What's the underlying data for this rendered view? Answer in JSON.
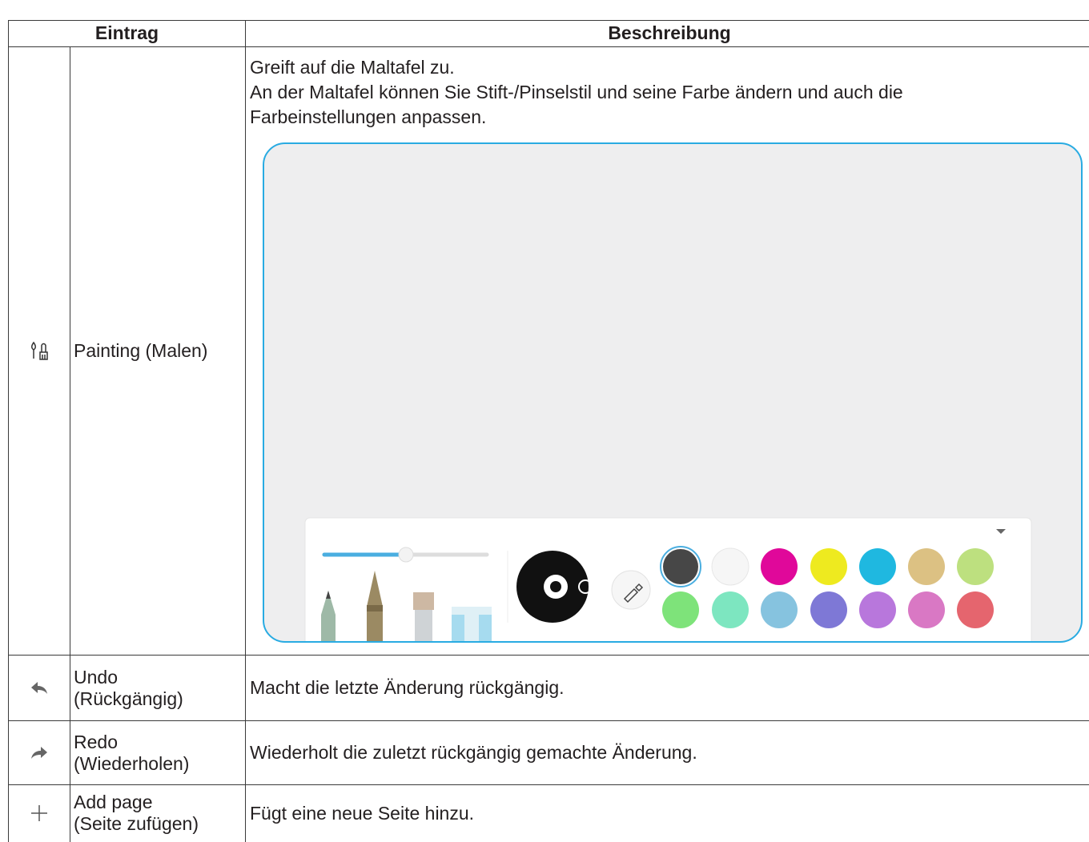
{
  "table": {
    "header": [
      "Eintrag",
      "Beschreibung"
    ],
    "rows": [
      {
        "entry": [
          "Painting (Malen)"
        ],
        "description": [
          "Greift auf die Maltafel zu.",
          "An der Maltafel können Sie Stift-/Pinselstil und seine Farbe ändern und auch die Farbeinstellungen anpassen."
        ]
      },
      {
        "entry": [
          "Undo",
          "(Rückgängig)"
        ],
        "description": [
          "Macht die letzte Änderung rückgängig."
        ]
      },
      {
        "entry": [
          "Redo",
          "(Wiederholen)"
        ],
        "description": [
          "Wiederholt die zuletzt rückgängig gemachte Änderung."
        ]
      },
      {
        "entry": [
          "Add page",
          "(Seite zufügen)"
        ],
        "description": [
          "Fügt eine neue Seite hinzu."
        ]
      }
    ]
  }
}
